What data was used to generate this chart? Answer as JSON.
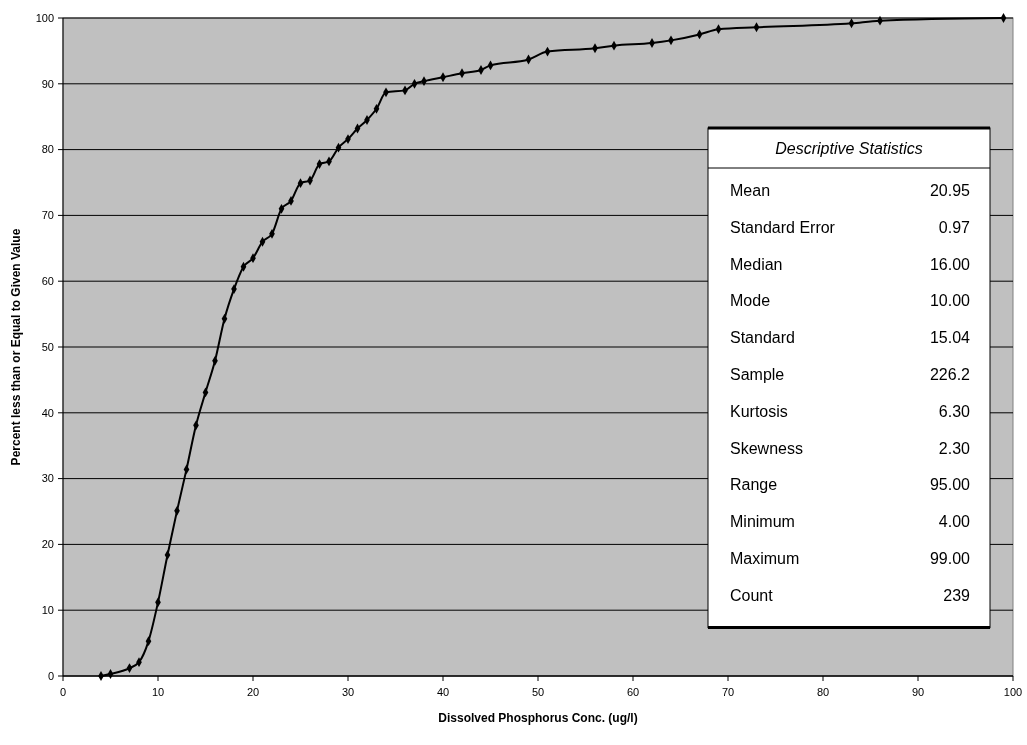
{
  "chart_data": {
    "type": "line",
    "xlabel": "Dissolved Phosphorus Conc. (ug/l)",
    "ylabel": "Percent less than or Equal to Given Value",
    "x": [
      4,
      5,
      7,
      8,
      9,
      10,
      11,
      12,
      13,
      14,
      15,
      16,
      17,
      18,
      19,
      20,
      21,
      22,
      23,
      24,
      25,
      26,
      27,
      28,
      29,
      30,
      31,
      32,
      33,
      34,
      36,
      37,
      38,
      40,
      42,
      44,
      45,
      49,
      51,
      56,
      58,
      62,
      64,
      67,
      69,
      73,
      83,
      86,
      99
    ],
    "series": [
      {
        "color": "#000000",
        "values": [
          0,
          0.3,
          1.2,
          2.1,
          5.3,
          11.2,
          18.4,
          25.1,
          31.4,
          38.1,
          43.1,
          47.9,
          54.3,
          58.8,
          62.2,
          63.5,
          66,
          67.2,
          71,
          72.2,
          74.9,
          75.3,
          77.8,
          78.2,
          80.3,
          81.6,
          83.2,
          84.5,
          86.2,
          88.7,
          89,
          90,
          90.4,
          91,
          91.6,
          92.1,
          92.8,
          93.7,
          94.9,
          95.4,
          95.8,
          96.2,
          96.6,
          97.5,
          98.3,
          98.6,
          99.2,
          99.6,
          100
        ]
      }
    ],
    "xlim": [
      0,
      100
    ],
    "xticks": [
      0,
      10,
      20,
      30,
      40,
      50,
      60,
      70,
      80,
      90,
      100
    ],
    "ylim": [
      0,
      100
    ],
    "yticks": [
      0,
      10,
      20,
      30,
      40,
      50,
      60,
      70,
      80,
      90,
      100
    ],
    "grid": "y",
    "marker": "diamond",
    "line_style": "solid",
    "annotations": [
      "Descriptive Statistics",
      "Mean",
      "20.95",
      "Standard Error",
      "0.97",
      "Median",
      "16.00",
      "Mode",
      "10.00",
      "Standard",
      "15.04",
      "Sample",
      "226.2",
      "Kurtosis",
      "6.30",
      "Skewness",
      "2.30",
      "Range",
      "95.00",
      "Minimum",
      "4.00",
      "Maximum",
      "99.00",
      "Count",
      "239"
    ]
  }
}
